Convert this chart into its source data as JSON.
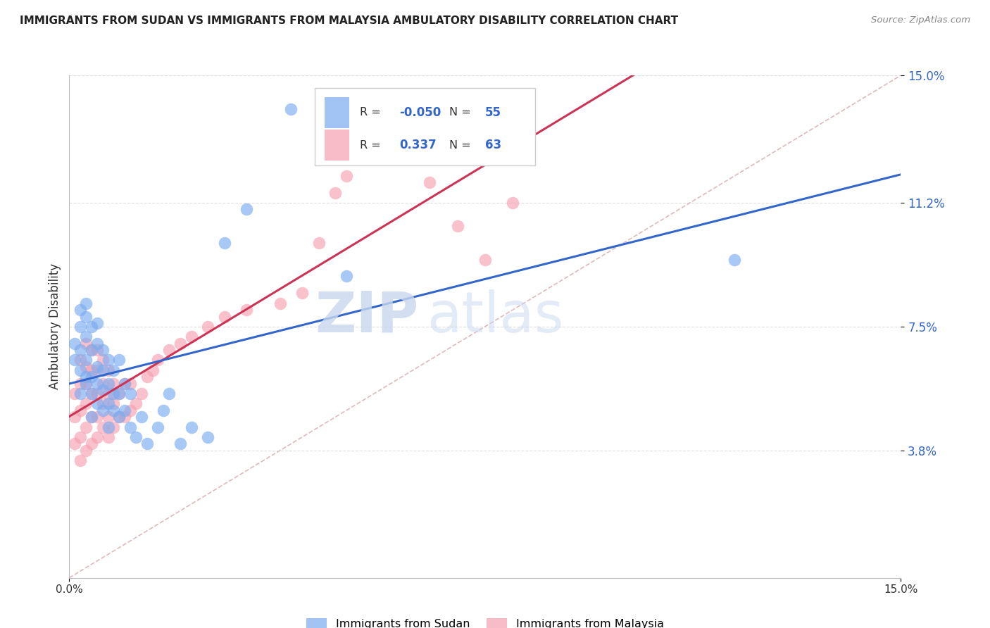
{
  "title": "IMMIGRANTS FROM SUDAN VS IMMIGRANTS FROM MALAYSIA AMBULATORY DISABILITY CORRELATION CHART",
  "source": "Source: ZipAtlas.com",
  "ylabel": "Ambulatory Disability",
  "xlim": [
    0.0,
    0.15
  ],
  "ylim": [
    0.0,
    0.15
  ],
  "yticks": [
    0.038,
    0.075,
    0.112,
    0.15
  ],
  "ytick_labels": [
    "3.8%",
    "7.5%",
    "11.2%",
    "15.0%"
  ],
  "xticks": [
    0.0,
    0.15
  ],
  "xtick_labels": [
    "0.0%",
    "15.0%"
  ],
  "sudan_color": "#7aabf0",
  "malaysia_color": "#f5a0b0",
  "sudan_R": -0.05,
  "sudan_N": 55,
  "malaysia_R": 0.337,
  "malaysia_N": 63,
  "sudan_line_color": "#3366cc",
  "malaysia_line_color": "#cc3355",
  "diagonal_color": "#ddbbbb",
  "watermark_zip": "ZIP",
  "watermark_atlas": "atlas",
  "legend_sudan": "Immigrants from Sudan",
  "legend_malaysia": "Immigrants from Malaysia",
  "sudan_x": [
    0.001,
    0.001,
    0.002,
    0.002,
    0.002,
    0.002,
    0.002,
    0.003,
    0.003,
    0.003,
    0.003,
    0.003,
    0.003,
    0.004,
    0.004,
    0.004,
    0.004,
    0.004,
    0.005,
    0.005,
    0.005,
    0.005,
    0.005,
    0.006,
    0.006,
    0.006,
    0.006,
    0.007,
    0.007,
    0.007,
    0.007,
    0.008,
    0.008,
    0.008,
    0.009,
    0.009,
    0.009,
    0.01,
    0.01,
    0.011,
    0.011,
    0.012,
    0.013,
    0.014,
    0.016,
    0.017,
    0.018,
    0.02,
    0.022,
    0.025,
    0.028,
    0.032,
    0.04,
    0.05,
    0.12
  ],
  "sudan_y": [
    0.065,
    0.07,
    0.055,
    0.062,
    0.068,
    0.075,
    0.08,
    0.058,
    0.06,
    0.065,
    0.072,
    0.078,
    0.082,
    0.048,
    0.055,
    0.06,
    0.068,
    0.075,
    0.052,
    0.058,
    0.063,
    0.07,
    0.076,
    0.05,
    0.056,
    0.062,
    0.068,
    0.045,
    0.052,
    0.058,
    0.065,
    0.05,
    0.055,
    0.062,
    0.048,
    0.055,
    0.065,
    0.05,
    0.058,
    0.045,
    0.055,
    0.042,
    0.048,
    0.04,
    0.045,
    0.05,
    0.055,
    0.04,
    0.045,
    0.042,
    0.1,
    0.11,
    0.14,
    0.09,
    0.095
  ],
  "malaysia_x": [
    0.001,
    0.001,
    0.001,
    0.002,
    0.002,
    0.002,
    0.002,
    0.002,
    0.003,
    0.003,
    0.003,
    0.003,
    0.003,
    0.003,
    0.004,
    0.004,
    0.004,
    0.004,
    0.004,
    0.005,
    0.005,
    0.005,
    0.005,
    0.005,
    0.006,
    0.006,
    0.006,
    0.006,
    0.007,
    0.007,
    0.007,
    0.007,
    0.008,
    0.008,
    0.008,
    0.009,
    0.009,
    0.01,
    0.01,
    0.011,
    0.011,
    0.012,
    0.013,
    0.014,
    0.015,
    0.016,
    0.018,
    0.02,
    0.022,
    0.025,
    0.028,
    0.032,
    0.038,
    0.042,
    0.045,
    0.048,
    0.05,
    0.055,
    0.06,
    0.065,
    0.07,
    0.075,
    0.08
  ],
  "malaysia_y": [
    0.04,
    0.048,
    0.055,
    0.035,
    0.042,
    0.05,
    0.058,
    0.065,
    0.038,
    0.045,
    0.052,
    0.058,
    0.063,
    0.07,
    0.04,
    0.048,
    0.055,
    0.062,
    0.068,
    0.042,
    0.048,
    0.055,
    0.062,
    0.068,
    0.045,
    0.052,
    0.058,
    0.065,
    0.042,
    0.048,
    0.055,
    0.062,
    0.045,
    0.052,
    0.058,
    0.048,
    0.055,
    0.048,
    0.058,
    0.05,
    0.058,
    0.052,
    0.055,
    0.06,
    0.062,
    0.065,
    0.068,
    0.07,
    0.072,
    0.075,
    0.078,
    0.08,
    0.082,
    0.085,
    0.1,
    0.115,
    0.12,
    0.125,
    0.13,
    0.118,
    0.105,
    0.095,
    0.112
  ]
}
